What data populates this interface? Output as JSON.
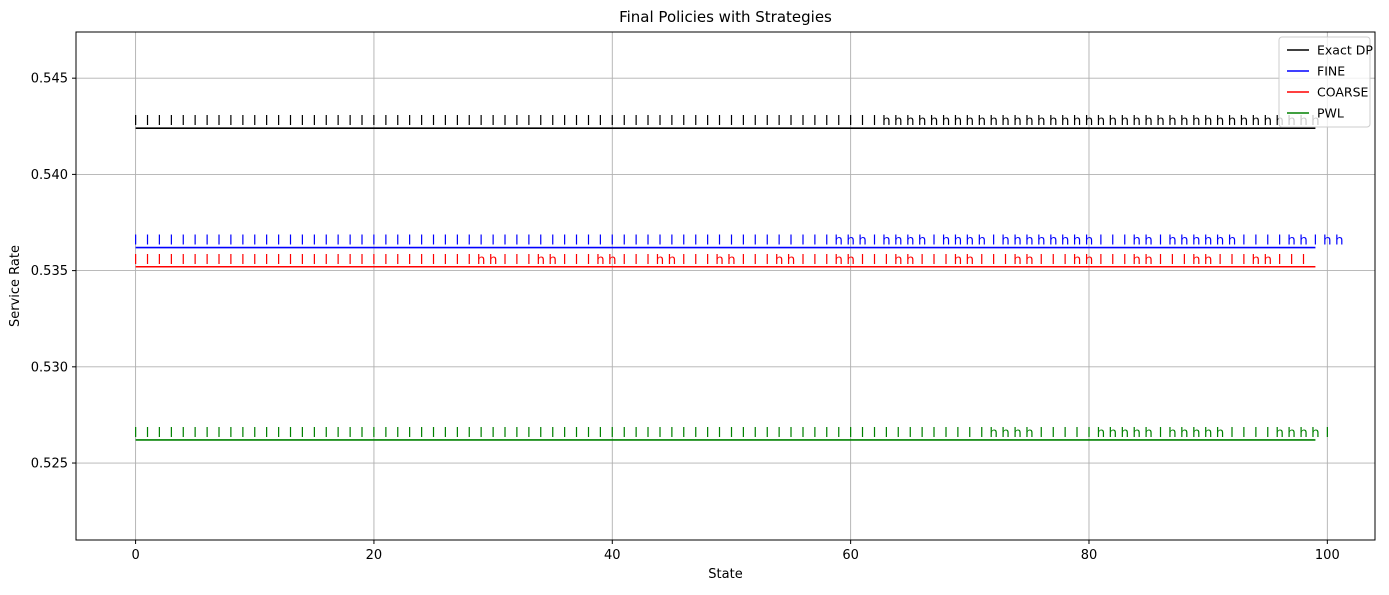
{
  "chart_data": {
    "type": "line",
    "title": "Final Policies with Strategies",
    "xlabel": "State",
    "ylabel": "Service Rate",
    "xlim": [
      -5,
      104
    ],
    "ylim": [
      0.521,
      0.5474
    ],
    "x_ticks": [
      0,
      20,
      40,
      60,
      80,
      100
    ],
    "y_ticks": [
      0.525,
      0.53,
      0.535,
      0.54,
      0.545
    ],
    "x_tick_labels": [
      "0",
      "20",
      "40",
      "60",
      "80",
      "100"
    ],
    "y_tick_labels": [
      "0.525",
      "0.530",
      "0.535",
      "0.540",
      "0.545"
    ],
    "grid": true,
    "legend_position": "top-right",
    "x_range": [
      0,
      99
    ],
    "label_every": 1,
    "series": [
      {
        "name": "Exact DP",
        "color": "#000000",
        "y": 0.5424,
        "strategy": "lllllllllllllllllllllllllllllllllllllllllllllllllllllllllllllllhhhhhhhhhhhhhhhhhhhhhhhhhhhhhhhhhhhhh"
      },
      {
        "name": "FINE",
        "color": "#0000ff",
        "y": 0.5362,
        "strategy": "lllllllllllllllllllllllllllllllllllllllllllllllllllllllllllhhhlhhhhlhhhhlhhhhhhhhlllhhlhhhhhhllllhhlhh"
      },
      {
        "name": "COARSE",
        "color": "#ff0000",
        "y": 0.5352,
        "strategy": "lllllllllllllllllllllllllllllhhlllhhlllhhlllhhlllhhlllhhlllhhlllhhlllhhlllhhlllhhlllhhlllhhlllhhlll"
      },
      {
        "name": "PWL",
        "color": "#008000",
        "y": 0.5262,
        "strategy": "llllllllllllllllllllllllllllllllllllllllllllllllllllllllllllllllllllllllhhhhlllllhhhhhlhhhhhllllhhhhl"
      }
    ]
  }
}
